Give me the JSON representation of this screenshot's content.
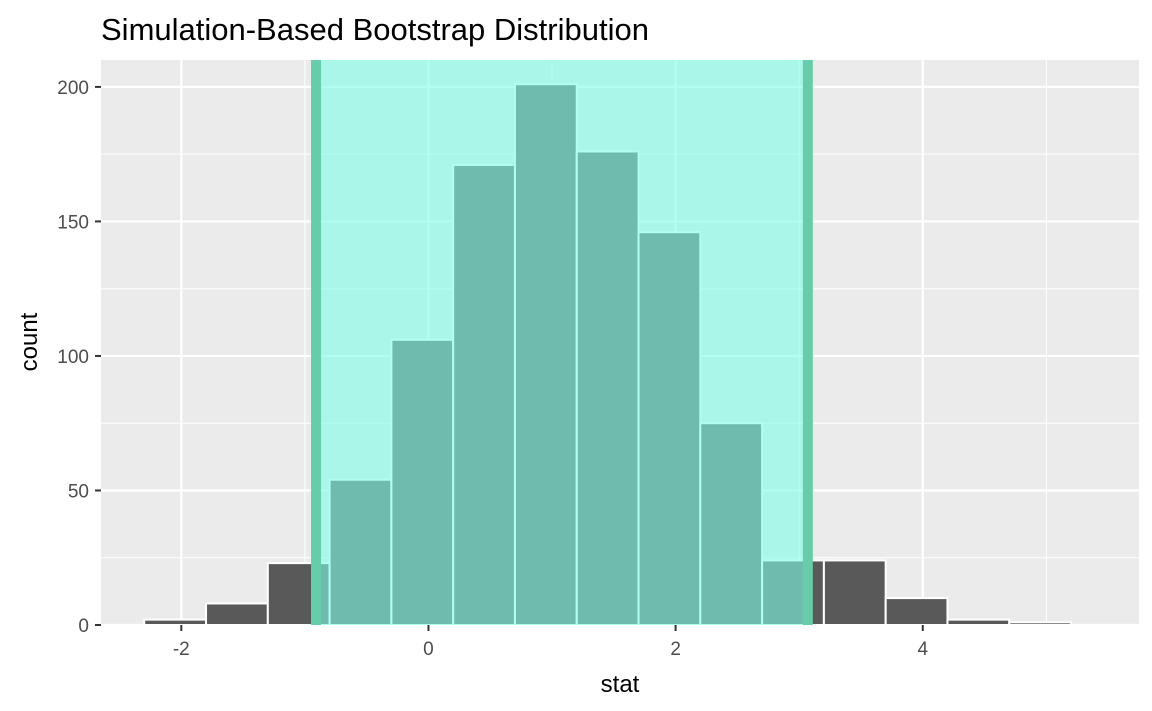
{
  "chart_data": {
    "type": "bar",
    "title": "Simulation-Based Bootstrap Distribution",
    "xlabel": "stat",
    "ylabel": "count",
    "xlim": [
      -2.65,
      5.75
    ],
    "ylim": [
      0,
      210
    ],
    "x_ticks": [
      -2,
      0,
      2,
      4
    ],
    "x_tick_labels": [
      "-2",
      "0",
      "2",
      "4"
    ],
    "y_ticks": [
      0,
      50,
      100,
      150,
      200
    ],
    "y_tick_labels": [
      "0",
      "50",
      "100",
      "150",
      "200"
    ],
    "grid": true,
    "bin_width": 0.5,
    "bins": [
      {
        "x": -2.05,
        "count": 2
      },
      {
        "x": -1.55,
        "count": 8
      },
      {
        "x": -1.05,
        "count": 23
      },
      {
        "x": -0.55,
        "count": 54
      },
      {
        "x": -0.05,
        "count": 106
      },
      {
        "x": 0.45,
        "count": 171
      },
      {
        "x": 0.95,
        "count": 201
      },
      {
        "x": 1.45,
        "count": 176
      },
      {
        "x": 1.95,
        "count": 146
      },
      {
        "x": 2.45,
        "count": 75
      },
      {
        "x": 2.95,
        "count": 24
      },
      {
        "x": 3.45,
        "count": 24
      },
      {
        "x": 3.95,
        "count": 10
      },
      {
        "x": 4.45,
        "count": 2
      },
      {
        "x": 4.95,
        "count": 1
      }
    ],
    "confidence_interval": {
      "lower": -0.91,
      "upper": 3.07
    },
    "colors": {
      "panel_background": "#ebebeb",
      "grid": "#ffffff",
      "bar_fill": "#595959",
      "bar_outline": "#ffffff",
      "shade_fill": "#7fffe8",
      "shade_line": "#66cdaa"
    }
  }
}
